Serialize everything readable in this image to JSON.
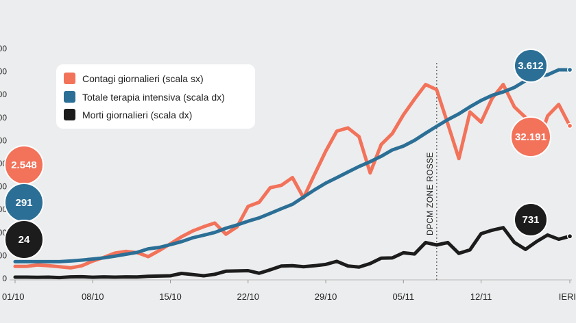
{
  "chart_data": {
    "type": "line",
    "x": [
      "01/10",
      "02/10",
      "03/10",
      "04/10",
      "05/10",
      "06/10",
      "07/10",
      "08/10",
      "09/10",
      "10/10",
      "11/10",
      "12/10",
      "13/10",
      "14/10",
      "15/10",
      "16/10",
      "17/10",
      "18/10",
      "19/10",
      "20/10",
      "21/10",
      "22/10",
      "23/10",
      "24/10",
      "25/10",
      "26/10",
      "27/10",
      "28/10",
      "29/10",
      "30/10",
      "31/10",
      "01/11",
      "02/11",
      "03/11",
      "04/11",
      "05/11",
      "06/11",
      "07/11",
      "08/11",
      "09/11",
      "10/11",
      "11/11",
      "12/11",
      "13/11",
      "14/11",
      "15/11",
      "16/11",
      "17/11",
      "18/11",
      "19/11",
      "IERI"
    ],
    "x_tick_labels": [
      "01/10",
      "08/10",
      "15/10",
      "22/10",
      "29/10",
      "05/11",
      "12/11",
      "IERI"
    ],
    "y_tick_labels": [
      "0",
      "00",
      "00",
      "00",
      "00",
      "00",
      "00",
      "00",
      "00",
      "00",
      "00"
    ],
    "series": [
      {
        "name": "Contagi giornalieri (scala sx)",
        "color": "#f2725a",
        "axis": "left",
        "values": [
          2548,
          2548,
          2844,
          2704,
          2499,
          2257,
          2677,
          3678,
          4458,
          5372,
          5724,
          5456,
          4619,
          5901,
          7332,
          8804,
          10010,
          10925,
          11705,
          9338,
          10874,
          15199,
          16079,
          19143,
          19644,
          21273,
          17012,
          21994,
          26831,
          31079,
          31758,
          29907,
          22253,
          28244,
          30550,
          34505,
          37809,
          40902,
          39811,
          32616,
          25271,
          35098,
          32961,
          37978,
          40902,
          36176,
          33979,
          27354,
          34283,
          36697,
          32191
        ]
      },
      {
        "name": "Totale terapia intensiva (scala dx)",
        "color": "#2b6f96",
        "axis": "right",
        "values": [
          291,
          291,
          291,
          291,
          291,
          303,
          319,
          337,
          358,
          387,
          420,
          452,
          514,
          539,
          586,
          638,
          705,
          750,
          797,
          870,
          926,
          992,
          1049,
          1128,
          1208,
          1284,
          1411,
          1536,
          1651,
          1746,
          1843,
          1939,
          2022,
          2115,
          2225,
          2292,
          2391,
          2515,
          2634,
          2749,
          2849,
          2971,
          3081,
          3170,
          3230,
          3306,
          3422,
          3492,
          3526,
          3612,
          3612
        ]
      },
      {
        "name": "Morti giornalieri (scala dx)",
        "color": "#1c1c1c",
        "axis": "right",
        "values": [
          24,
          24,
          20,
          24,
          17,
          28,
          31,
          22,
          28,
          24,
          29,
          26,
          39,
          43,
          47,
          89,
          69,
          47,
          73,
          127,
          131,
          136,
          91,
          151,
          217,
          221,
          205,
          221,
          244,
          297,
          217,
          199,
          259,
          353,
          356,
          445,
          425,
          623,
          580,
          623,
          435,
          496,
          776,
          836,
          880,
          624,
          504,
          640,
          753,
          680,
          731
        ]
      }
    ],
    "annotations": [
      {
        "label": "3.612",
        "series": "Totale terapia intensiva (scala dx)"
      },
      {
        "label": "32.191",
        "series": "Contagi giornalieri (scala sx)"
      },
      {
        "label": "731",
        "series": "Morti giornalieri (scala dx)"
      },
      {
        "label": "2.548",
        "series": "Contagi giornalieri (scala sx)"
      },
      {
        "label": "291",
        "series": "Totale terapia intensiva (scala dx)"
      },
      {
        "label": "24",
        "series": "Morti giornalieri (scala dx)"
      }
    ],
    "vline": {
      "x": "08/11",
      "label": "DPCM ZONE ROSSE"
    },
    "legend_position": "top-left",
    "grid": false
  }
}
